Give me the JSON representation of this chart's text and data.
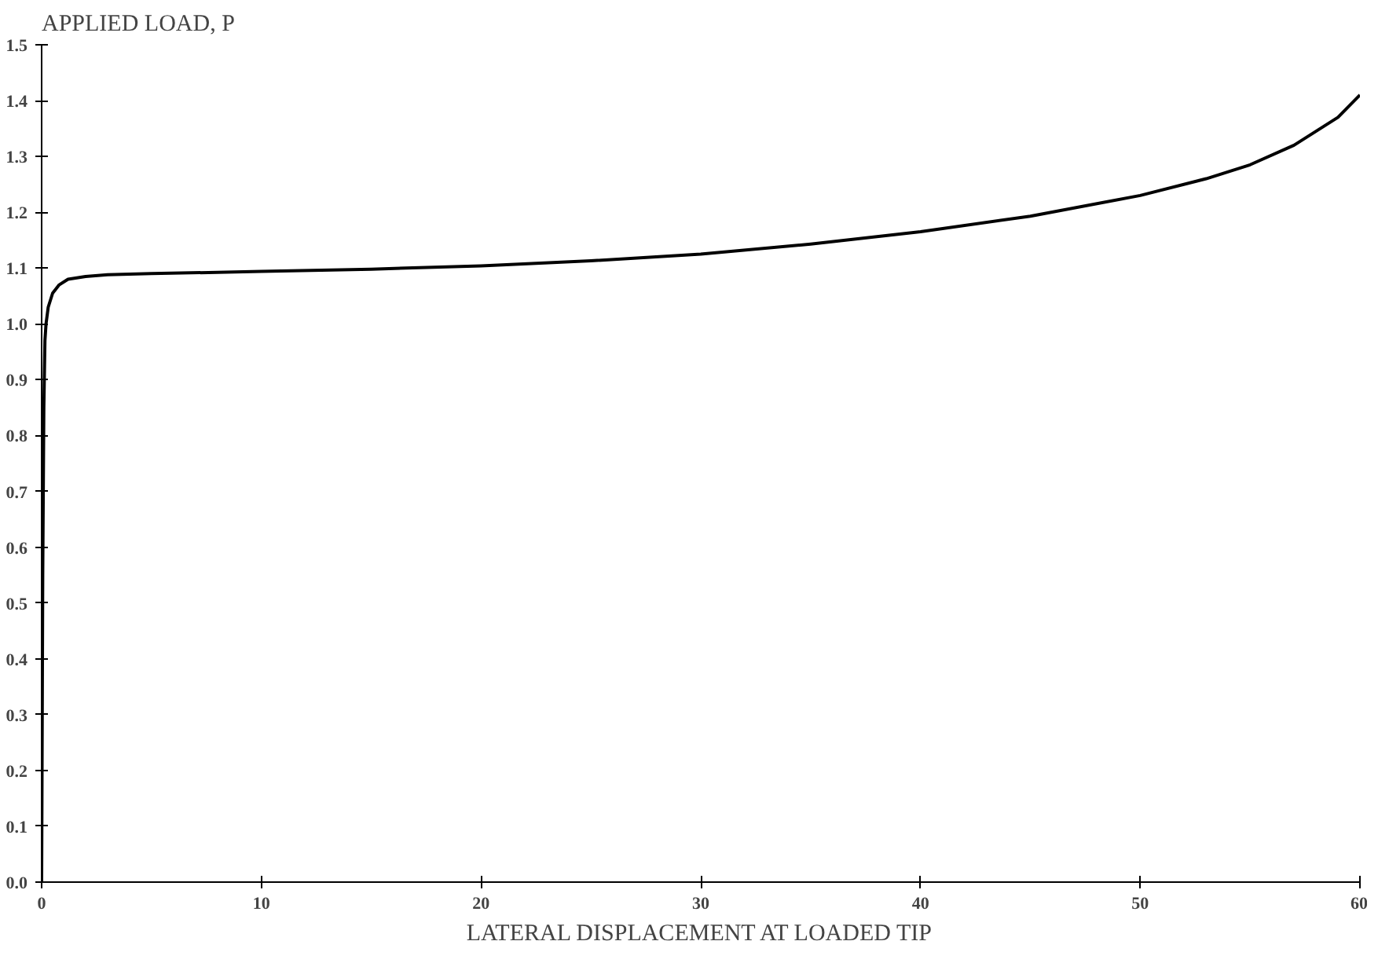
{
  "chart_data": {
    "type": "line",
    "title": "APPLIED LOAD,  P",
    "xlabel": "LATERAL DISPLACEMENT AT LOADED TIP",
    "x": [
      0,
      0.05,
      0.1,
      0.15,
      0.2,
      0.3,
      0.5,
      0.8,
      1.2,
      2,
      3,
      5,
      10,
      15,
      20,
      25,
      30,
      35,
      40,
      45,
      50,
      53,
      55,
      57,
      59,
      60
    ],
    "series": [
      {
        "color": "#000000",
        "values": [
          0,
          0.55,
          0.85,
          0.97,
          1.0,
          1.03,
          1.055,
          1.07,
          1.08,
          1.085,
          1.088,
          1.09,
          1.094,
          1.098,
          1.104,
          1.113,
          1.125,
          1.143,
          1.165,
          1.193,
          1.23,
          1.26,
          1.285,
          1.32,
          1.37,
          1.41
        ]
      }
    ],
    "xlim": [
      0,
      60
    ],
    "ylim": [
      0,
      1.5
    ],
    "xticks": [
      0,
      10,
      20,
      30,
      40,
      50,
      60
    ],
    "yticks": [
      {
        "value": 0,
        "label": "0.0"
      },
      0.1,
      0.2,
      0.3,
      0.4,
      0.5,
      0.6,
      0.7,
      0.8,
      0.9,
      {
        "value": 1,
        "label": "1.0"
      },
      1.1,
      1.2,
      1.3,
      1.4,
      1.5
    ],
    "grid": false,
    "marker": "none",
    "line_style": "solid"
  }
}
